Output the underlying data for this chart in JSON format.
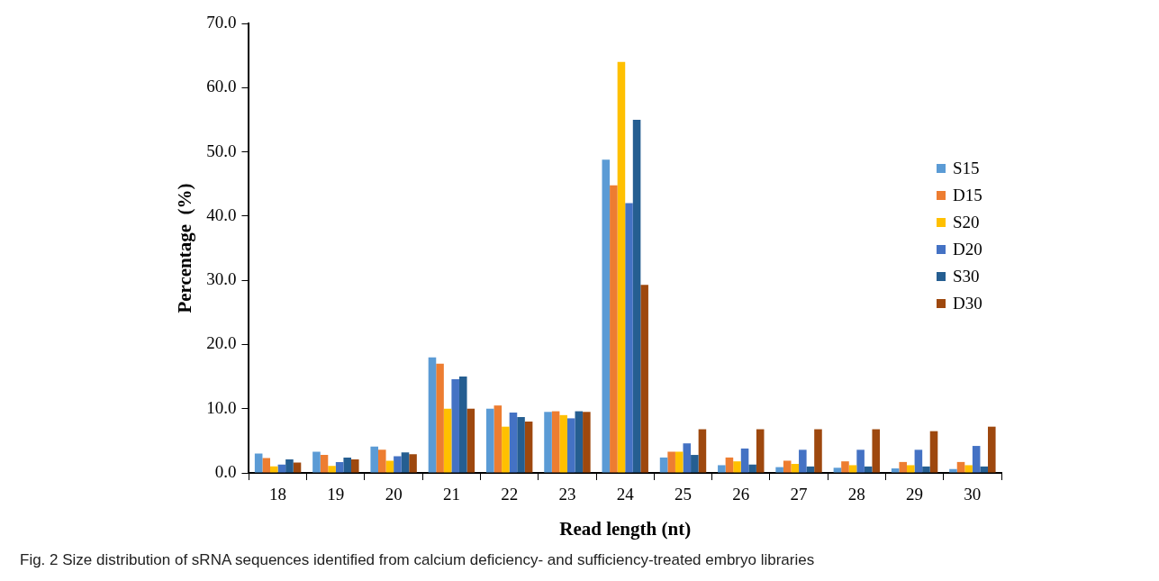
{
  "chart_data": {
    "type": "bar",
    "xlabel": "Read length (nt)",
    "ylabel": "Percentage  (%)",
    "categories": [
      "18",
      "19",
      "20",
      "21",
      "22",
      "23",
      "24",
      "25",
      "26",
      "27",
      "28",
      "29",
      "30"
    ],
    "series": [
      {
        "name": "S15",
        "color": "#5b9bd5",
        "values": [
          3.0,
          3.3,
          4.1,
          18.0,
          10.0,
          9.5,
          48.8,
          2.4,
          1.2,
          0.9,
          0.8,
          0.7,
          0.6
        ]
      },
      {
        "name": "D15",
        "color": "#ed7d31",
        "values": [
          2.3,
          2.8,
          3.6,
          17.0,
          10.5,
          9.6,
          44.8,
          3.3,
          2.4,
          1.9,
          1.8,
          1.7,
          1.7
        ]
      },
      {
        "name": "S20",
        "color": "#ffc000",
        "values": [
          1.0,
          1.1,
          1.9,
          10.0,
          7.2,
          9.0,
          64.0,
          3.3,
          1.8,
          1.4,
          1.2,
          1.2,
          1.2
        ]
      },
      {
        "name": "D20",
        "color": "#4472c4",
        "values": [
          1.3,
          1.7,
          2.6,
          14.6,
          9.4,
          8.5,
          42.0,
          4.6,
          3.8,
          3.6,
          3.6,
          3.6,
          4.2
        ]
      },
      {
        "name": "S30",
        "color": "#255e91",
        "values": [
          2.1,
          2.4,
          3.2,
          15.0,
          8.7,
          9.6,
          55.0,
          2.8,
          1.3,
          1.0,
          1.0,
          1.0,
          1.0
        ]
      },
      {
        "name": "D30",
        "color": "#9e480e",
        "values": [
          1.6,
          2.1,
          2.9,
          10.0,
          8.0,
          9.5,
          29.3,
          6.8,
          6.8,
          6.8,
          6.8,
          6.5,
          7.2
        ]
      }
    ],
    "ylim": [
      0,
      70
    ],
    "yticks": [
      {
        "value": 0,
        "label": "0.0"
      },
      {
        "value": 10,
        "label": "10.0"
      },
      {
        "value": 20,
        "label": "20.0"
      },
      {
        "value": 30,
        "label": "30.0"
      },
      {
        "value": 40,
        "label": "40.0"
      },
      {
        "value": 50,
        "label": "50.0"
      },
      {
        "value": 60,
        "label": "60.0"
      },
      {
        "value": 70,
        "label": "70.0"
      }
    ],
    "grid": false,
    "legend": "right",
    "annotations": [
      "Fig. 2 Size distribution of sRNA sequences identified from calcium deficiency- and sufficiency-treated embryo libraries"
    ]
  }
}
